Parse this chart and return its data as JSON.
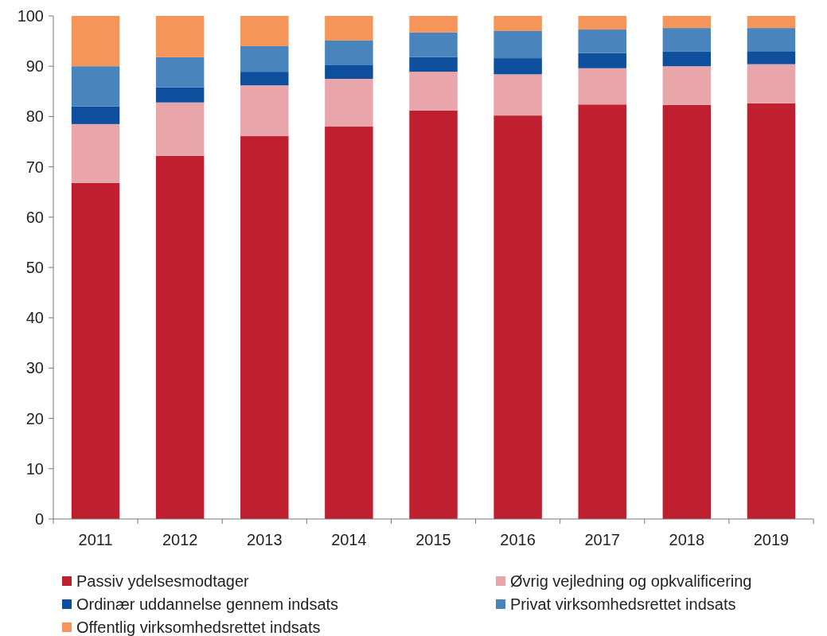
{
  "chart_data": {
    "type": "bar",
    "stacked": true,
    "categories": [
      "2011",
      "2012",
      "2013",
      "2014",
      "2015",
      "2016",
      "2017",
      "2018",
      "2019"
    ],
    "series": [
      {
        "name": "Passiv ydelsesmodtager",
        "color": "#c01f2f",
        "values": [
          66.8,
          72.2,
          76.1,
          78.0,
          81.2,
          80.2,
          82.4,
          82.3,
          82.6
        ]
      },
      {
        "name": "Øvrig vejledning og opkvalificering",
        "color": "#e8a6ab",
        "values": [
          11.7,
          10.6,
          10.1,
          9.5,
          7.7,
          8.2,
          7.2,
          7.7,
          7.8
        ]
      },
      {
        "name": "Ordinær uddannelse gennem indsats",
        "color": "#0d4f9c",
        "values": [
          3.5,
          3.0,
          2.7,
          2.8,
          2.9,
          3.2,
          3.0,
          2.9,
          2.6
        ]
      },
      {
        "name": "Privat virksomhedsrettet indsats",
        "color": "#4a84bd",
        "values": [
          8.0,
          6.0,
          5.1,
          4.8,
          4.9,
          5.4,
          4.7,
          4.7,
          4.6
        ]
      },
      {
        "name": "Offentlig virksomhedsrettet indsats",
        "color": "#f5955a",
        "values": [
          10.0,
          8.2,
          6.0,
          4.9,
          3.3,
          3.0,
          2.7,
          2.4,
          2.4
        ]
      }
    ],
    "ylim": [
      0,
      100
    ],
    "yticks": [
      0,
      10,
      20,
      30,
      40,
      50,
      60,
      70,
      80,
      90,
      100
    ],
    "grid": false,
    "legend": "bottom"
  }
}
